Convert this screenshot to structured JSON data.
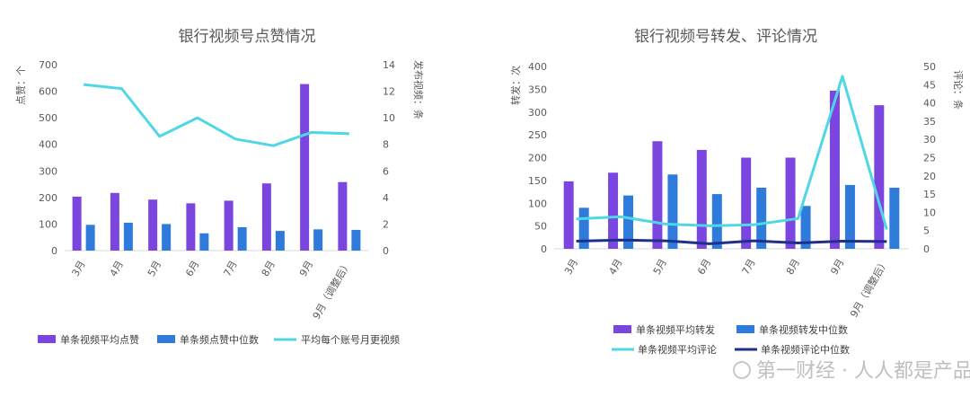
{
  "charts": [
    {
      "title": "银行视频号点赞情况",
      "y_left_label": "点赞：个",
      "y_right_label": "发布视频：条",
      "left_ticks": [
        "0",
        "100",
        "200",
        "300",
        "400",
        "500",
        "600",
        "700"
      ],
      "right_ticks": [
        "0",
        "2",
        "4",
        "6",
        "8",
        "10",
        "12",
        "14"
      ],
      "categories": [
        "3月",
        "4月",
        "5月",
        "6月",
        "7月",
        "8月",
        "9月",
        "9月（调整后）"
      ],
      "legend": [
        "单条视频平均点赞",
        "单条频点赞中位数",
        "平均每个账号月更视频"
      ]
    },
    {
      "title": "银行视频号转发、评论情况",
      "y_left_label": "转发：次",
      "y_right_label": "评论：条",
      "left_ticks": [
        "0",
        "50",
        "100",
        "150",
        "200",
        "250",
        "300",
        "350",
        "400"
      ],
      "right_ticks": [
        "0",
        "5",
        "10",
        "15",
        "20",
        "25",
        "30",
        "35",
        "40",
        "45",
        "50"
      ],
      "categories": [
        "3月",
        "4月",
        "5月",
        "6月",
        "7月",
        "8月",
        "9月",
        "9月（调整后）"
      ],
      "legend": [
        "单条视频平均转发",
        "单条视频转发中位数",
        "单条视频平均评论",
        "单条视频评论中位数"
      ]
    }
  ],
  "watermark": "第一财经 · 人人都是产品经理",
  "colors": {
    "purple": "#7B46E0",
    "blue": "#2E7BDC",
    "cyan": "#4FD7E6",
    "navy": "#1F2F8A"
  },
  "chart_data": [
    {
      "type": "bar",
      "title": "银行视频号点赞情况",
      "ylabel": "点赞：个",
      "y2label": "发布视频：条",
      "ylim": [
        0,
        700
      ],
      "y2lim": [
        0,
        14
      ],
      "categories": [
        "3月",
        "4月",
        "5月",
        "6月",
        "7月",
        "8月",
        "9月",
        "9月（调整后）"
      ],
      "series": [
        {
          "name": "单条视频平均点赞",
          "type": "bar",
          "axis": "left",
          "values": [
            203,
            217,
            192,
            178,
            188,
            253,
            627,
            258
          ]
        },
        {
          "name": "单条频点赞中位数",
          "type": "bar",
          "axis": "left",
          "values": [
            97,
            105,
            100,
            65,
            88,
            74,
            80,
            78
          ]
        },
        {
          "name": "平均每个账号月更视频",
          "type": "line",
          "axis": "right",
          "values": [
            12.5,
            12.2,
            8.6,
            10.0,
            8.4,
            7.9,
            8.9,
            8.8
          ]
        }
      ],
      "legend_position": "bottom"
    },
    {
      "type": "bar",
      "title": "银行视频号转发、评论情况",
      "ylabel": "转发：次",
      "y2label": "评论：条",
      "ylim": [
        0,
        400
      ],
      "y2lim": [
        0,
        50
      ],
      "categories": [
        "3月",
        "4月",
        "5月",
        "6月",
        "7月",
        "8月",
        "9月",
        "9月（调整后）"
      ],
      "series": [
        {
          "name": "单条视频平均转发",
          "type": "bar",
          "axis": "left",
          "values": [
            148,
            167,
            236,
            217,
            200,
            200,
            347,
            315
          ]
        },
        {
          "name": "单条视频转发中位数",
          "type": "bar",
          "axis": "left",
          "values": [
            90,
            117,
            163,
            120,
            134,
            94,
            140,
            134
          ]
        },
        {
          "name": "单条视频平均评论",
          "type": "line",
          "axis": "right",
          "values": [
            8.2,
            8.8,
            6.8,
            6.3,
            6.6,
            8.3,
            47.3,
            5.3
          ]
        },
        {
          "name": "单条视频评论中位数",
          "type": "line",
          "axis": "right",
          "values": [
            2.1,
            2.4,
            2.2,
            1.4,
            2.2,
            1.6,
            2.1,
            2.0
          ]
        }
      ],
      "legend_position": "bottom"
    }
  ]
}
